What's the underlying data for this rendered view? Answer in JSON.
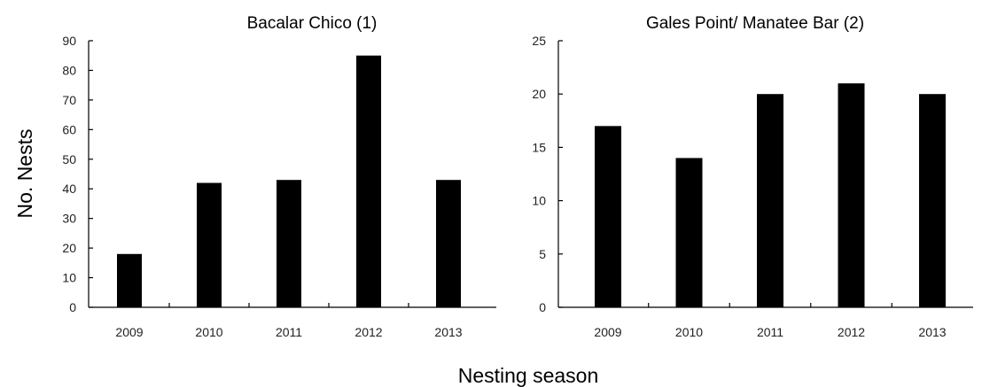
{
  "figure": {
    "ylabel": "No. Nests",
    "xlabel": "Nesting season"
  },
  "chart_data": [
    {
      "type": "bar",
      "title": "Bacalar Chico (1)",
      "categories": [
        "2009",
        "2010",
        "2011",
        "2012",
        "2013"
      ],
      "values": [
        18,
        42,
        43,
        85,
        43
      ],
      "ylim": [
        0,
        90
      ],
      "yticks": [
        0,
        10,
        20,
        30,
        40,
        50,
        60,
        70,
        80,
        90
      ],
      "color": "#000000",
      "grid": false
    },
    {
      "type": "bar",
      "title": "Gales Point/ Manatee Bar (2)",
      "categories": [
        "2009",
        "2010",
        "2011",
        "2012",
        "2013"
      ],
      "values": [
        17,
        14,
        20,
        21,
        20
      ],
      "ylim": [
        0,
        25
      ],
      "yticks": [
        0,
        5,
        10,
        15,
        20,
        25
      ],
      "color": "#000000",
      "grid": false
    }
  ]
}
